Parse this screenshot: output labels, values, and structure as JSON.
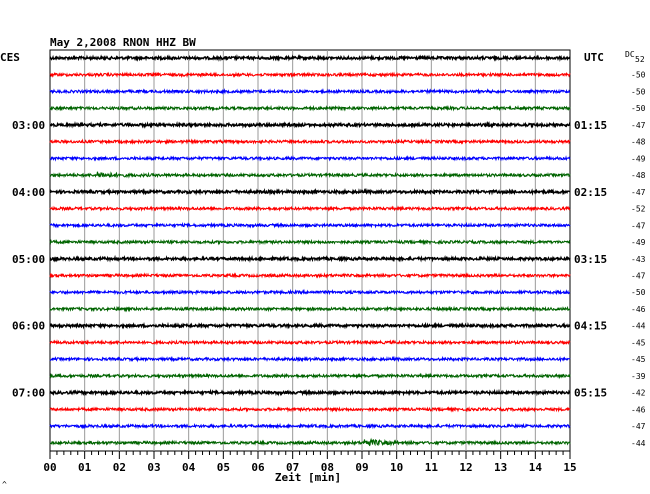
{
  "chart_data": {
    "type": "line",
    "title": "May 2,2008   RNON HHZ BW",
    "left_zone_label": "CES",
    "right_zone_label": "UTC",
    "dc_header": "DC",
    "dc_header_sub": "52",
    "xlabel": "Zeit [min]",
    "x_range": [
      0,
      15
    ],
    "x_ticks": [
      "00",
      "01",
      "02",
      "03",
      "04",
      "05",
      "06",
      "07",
      "08",
      "09",
      "10",
      "11",
      "12",
      "13",
      "14",
      "15"
    ],
    "hour_labels_left": [
      {
        "row": 4,
        "label": "03:00"
      },
      {
        "row": 8,
        "label": "04:00"
      },
      {
        "row": 12,
        "label": "05:00"
      },
      {
        "row": 16,
        "label": "06:00"
      },
      {
        "row": 20,
        "label": "07:00"
      }
    ],
    "hour_labels_right": [
      {
        "row": 4,
        "label": "01:15"
      },
      {
        "row": 8,
        "label": "02:15"
      },
      {
        "row": 12,
        "label": "03:15"
      },
      {
        "row": 16,
        "label": "04:15"
      },
      {
        "row": 20,
        "label": "05:15"
      }
    ],
    "trace_colors": [
      "#000000",
      "#ff0000",
      "#0000ff",
      "#006400"
    ],
    "dc_offsets": [
      -50,
      -50,
      -50,
      -50,
      -47,
      -48,
      -49,
      -48,
      -47,
      -52,
      -47,
      -49,
      -43,
      -47,
      -50,
      -46,
      -44,
      -45,
      -45,
      -39,
      -42,
      -46,
      -47,
      -44
    ],
    "events": [
      {
        "row": 7,
        "minute": 1.4,
        "amplitude": 2.2
      },
      {
        "row": 23,
        "minute": 9.1,
        "amplitude": 2.8
      }
    ],
    "footer_mark": "^"
  }
}
